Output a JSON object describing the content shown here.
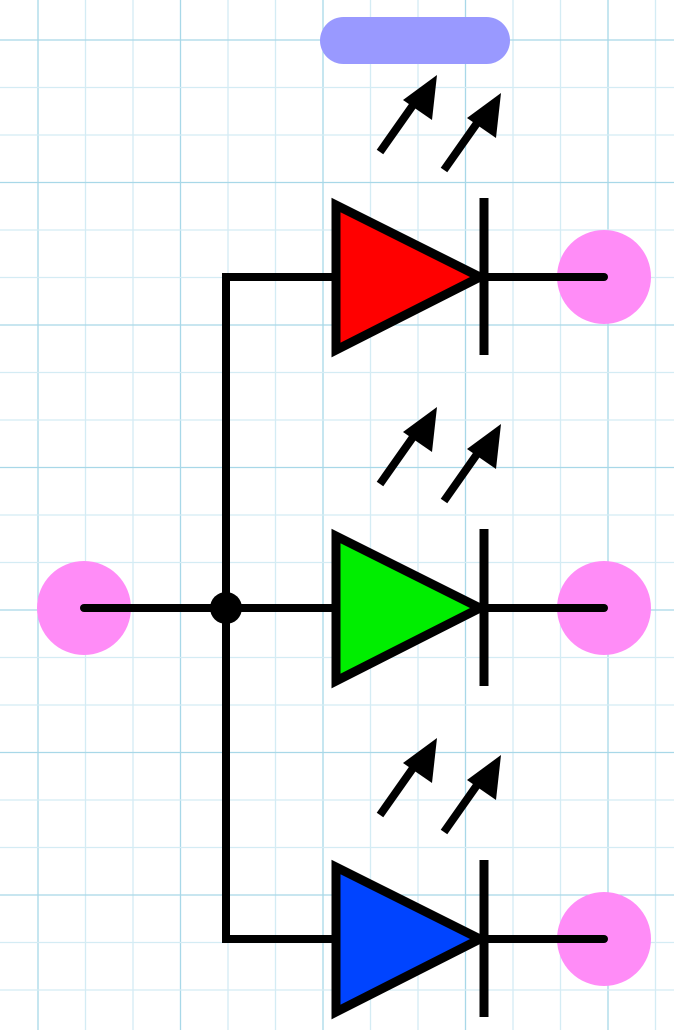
{
  "diagram": {
    "type": "common-anode-rgb-led-symbol",
    "colors": {
      "background": "#ffffff",
      "grid_major": "#a8d8e8",
      "grid_minor": "#d4ecf4",
      "wire": "#000000",
      "terminal": "#ff8cf7",
      "label_pill": "#9999ff"
    },
    "leds": [
      {
        "name": "red",
        "fill": "#ff0000"
      },
      {
        "name": "green",
        "fill": "#00ee00"
      },
      {
        "name": "blue",
        "fill": "#0044ff"
      }
    ]
  }
}
